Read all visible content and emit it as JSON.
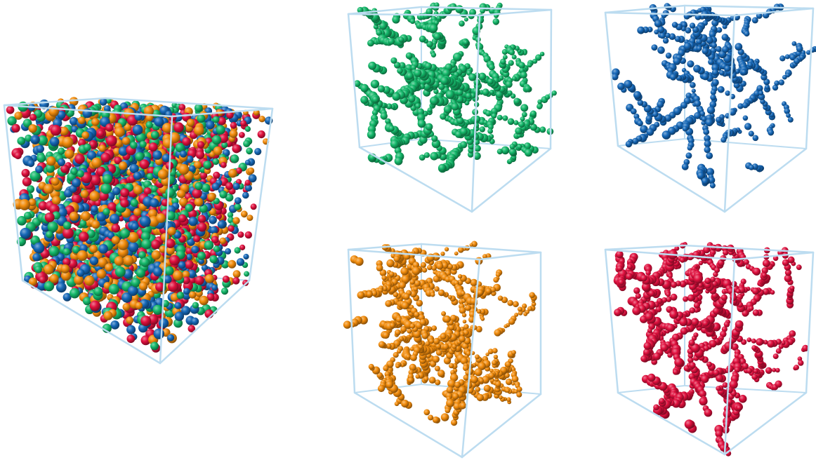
{
  "colors": {
    "box_edge": "#bcdcf0",
    "green": "#14b86a",
    "blue": "#1668b8",
    "orange": "#f28c0c",
    "red": "#e0103e",
    "background": "#ffffff"
  },
  "panels": [
    {
      "name": "mixed-molecule-cube",
      "species": [
        "green",
        "blue",
        "orange",
        "red"
      ],
      "density": "high"
    },
    {
      "name": "green-species-cube",
      "species": [
        "green"
      ],
      "density": "medium"
    },
    {
      "name": "blue-species-cube",
      "species": [
        "blue"
      ],
      "density": "sparse"
    },
    {
      "name": "orange-species-cube",
      "species": [
        "orange"
      ],
      "density": "medium"
    },
    {
      "name": "red-species-cube",
      "species": [
        "red"
      ],
      "density": "medium"
    }
  ]
}
